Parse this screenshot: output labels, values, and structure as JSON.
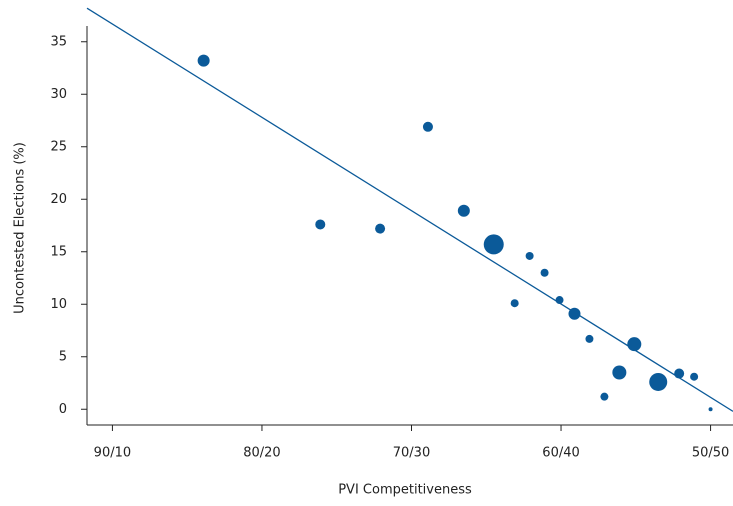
{
  "chart_data": {
    "type": "scatter",
    "x_label": "PVI Competitiveness",
    "y_label": "Uncontested Elections (%)",
    "color": "#0b5a99",
    "x": [
      83.9,
      76.1,
      72.1,
      68.9,
      66.5,
      64.5,
      62.1,
      61.1,
      63.1,
      60.1,
      59.1,
      58.1,
      55.1,
      56.1,
      57.1,
      53.5,
      52.1,
      51.1,
      50.0
    ],
    "values": [
      33.2,
      17.6,
      17.2,
      26.9,
      18.9,
      15.7,
      14.6,
      13.0,
      10.1,
      10.4,
      9.1,
      6.7,
      6.2,
      3.5,
      1.2,
      2.6,
      3.4,
      3.1,
      0
    ],
    "sizes": [
      6,
      5,
      5,
      5,
      6,
      10,
      4,
      4,
      4,
      4,
      6,
      4,
      7,
      7,
      4,
      9,
      5,
      4,
      2
    ],
    "trendline": {
      "x": [
        91.7,
        48.5
      ],
      "y": [
        38.2,
        -0.2
      ]
    },
    "xlim": [
      91.7,
      48.5
    ],
    "ylim": [
      -1.5,
      36.5
    ],
    "xticks": [
      {
        "value": 90,
        "label": "90/10"
      },
      {
        "value": 80,
        "label": "80/20"
      },
      {
        "value": 70,
        "label": "70/30"
      },
      {
        "value": 60,
        "label": "60/40"
      },
      {
        "value": 50,
        "label": "50/50"
      }
    ],
    "yticks": [
      0,
      5,
      10,
      15,
      20,
      25,
      30,
      35
    ]
  }
}
